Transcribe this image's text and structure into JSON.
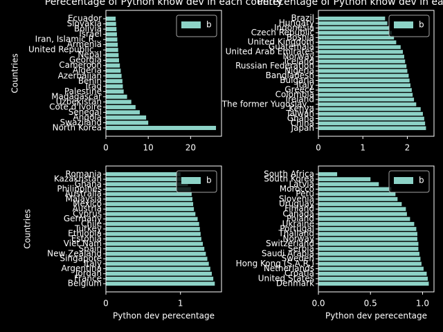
{
  "chart_data": [
    {
      "type": "barh",
      "title": "Perecentage of Python know dev in each country",
      "ylabel": "Countries",
      "categories": [
        "North Korea",
        "Swaziland",
        "Angola",
        "Senegal",
        "Cote d'Ivoire",
        "Uzbekistan",
        "Madagascar",
        "Palestine",
        "Iraq",
        "Benin",
        "Azerbaijan",
        "Algeria",
        "Cameroon",
        "Georgia",
        "Nepal",
        "United Republic...",
        "Armenia",
        "Iran, Islamic R...",
        "Israel",
        "Bolivia",
        "Slovakia",
        "Ecuador"
      ],
      "series": [
        {
          "name": "b",
          "color": "#8dd3c7",
          "values": [
            26,
            10,
            9.5,
            8,
            7,
            6,
            5,
            4.2,
            4,
            3.9,
            3.7,
            3.5,
            3.3,
            3.1,
            3,
            2.9,
            2.8,
            2.7,
            2.6,
            2.5,
            2.4,
            2.3
          ]
        }
      ],
      "xlim": [
        0,
        27.3
      ],
      "xticks": [
        0,
        10,
        20
      ],
      "legend": "upper right"
    },
    {
      "type": "barh",
      "title": "Perecentage of Python know dev in each country",
      "categories": [
        "Japan",
        "China",
        "Ghana",
        "Taiwan",
        "Kenya",
        "The former Yugoslav...",
        "Ireland",
        "Colombia",
        "Greece",
        "Italy",
        "Bulgaria",
        "Bangladesh",
        "Nigeria",
        "Russian Federation",
        "Iceland",
        "Norway",
        "United Arab Emirates",
        "Guatemala",
        "United Kingdom",
        "Bosnia",
        "Czech Republic",
        "Indonesia",
        "Hungary",
        "Brazil"
      ],
      "series": [
        {
          "name": "b",
          "color": "#8dd3c7",
          "values": [
            2.42,
            2.4,
            2.38,
            2.35,
            2.3,
            2.2,
            2.15,
            2.12,
            2.1,
            2.07,
            2.05,
            2.03,
            2,
            1.98,
            1.95,
            1.93,
            1.9,
            1.85,
            1.75,
            1.7,
            1.65,
            1.6,
            1.55,
            1.5
          ]
        }
      ],
      "xlim": [
        0,
        2.6
      ],
      "xticks": [
        0,
        1,
        2
      ],
      "legend": "upper right"
    },
    {
      "type": "barh",
      "ylabel": "Countries",
      "xlabel": "Python dev perecentage",
      "categories": [
        "Belgium",
        "France",
        "Jordan",
        "Argentina",
        "Italy",
        "Singapore",
        "New Zealand",
        "Spain",
        "Viet Nam",
        "Estonia",
        "Ethiopia",
        "Turkey",
        "Chile",
        "Germany",
        "Cyprus",
        "Austria",
        "Mexico",
        "Malaysia",
        "Australia",
        "Philippines",
        "Ghana",
        "Kazakhstan",
        "Romania"
      ],
      "series": [
        {
          "name": "b",
          "color": "#8dd3c7",
          "values": [
            1.46,
            1.44,
            1.42,
            1.4,
            1.38,
            1.36,
            1.34,
            1.32,
            1.3,
            1.28,
            1.27,
            1.26,
            1.25,
            1.23,
            1.2,
            1.18,
            1.17,
            1.16,
            1.15,
            1.14,
            1.1,
            1.05,
            1
          ]
        }
      ],
      "xlim": [
        0,
        1.55
      ],
      "xticks": [
        0,
        1
      ],
      "legend": "upper right"
    },
    {
      "type": "barh",
      "xlabel": "Python dev perecentage",
      "categories": [
        "Denmark",
        "United States",
        "Croatia",
        "Netherlands",
        "Hong Kong (S.A.R.)",
        "Sweden",
        "Saudi Arabia",
        "Serbia",
        "Switzerland",
        "Norway",
        "Thailand",
        "Portugal",
        "Ukraine",
        "Poland",
        "Canada",
        "Finland",
        "Uruguay",
        "Slovenia",
        "Peru",
        "Morocco",
        "Latvia",
        "South Korea",
        "South Africa"
      ],
      "series": [
        {
          "name": "b",
          "color": "#8dd3c7",
          "values": [
            1.06,
            1.05,
            1.04,
            1.01,
            0.99,
            0.98,
            0.97,
            0.96,
            0.96,
            0.95,
            0.95,
            0.94,
            0.92,
            0.88,
            0.85,
            0.84,
            0.8,
            0.76,
            0.74,
            0.7,
            0.58,
            0.5,
            0.18
          ]
        }
      ],
      "xlim": [
        0,
        1.11
      ],
      "xticks": [
        {
          "value": 0,
          "label": "0.0"
        },
        0.5,
        {
          "value": 1,
          "label": "1.0"
        }
      ],
      "legend": "upper right"
    }
  ]
}
